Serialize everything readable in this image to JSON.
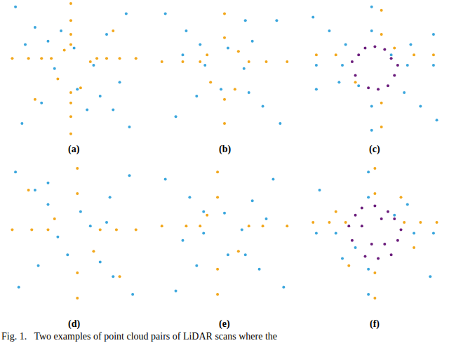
{
  "caption": "Fig. 1.   Two examples of point cloud pairs of LiDAR scans where the",
  "chart_data": [
    {
      "type": "scatter",
      "annotations": [
        "(a)"
      ],
      "xlim": [
        -1,
        1
      ],
      "ylim": [
        -1,
        1
      ],
      "tick_labels": false,
      "grid": false,
      "series": [
        {
          "color": "#f2a71b",
          "x": [
            -0.95,
            -0.7,
            -0.5,
            -0.35,
            0.35,
            0.5,
            0.7,
            0.95,
            -0.05,
            -0.05,
            -0.05,
            -0.05,
            -0.05,
            -0.05,
            -0.05,
            -0.05,
            0.25,
            -0.25,
            0.1,
            -0.15,
            0.6,
            -0.6
          ],
          "y": [
            0.15,
            0.15,
            0.15,
            0.15,
            0.15,
            0.15,
            0.15,
            0.15,
            0.95,
            0.7,
            0.5,
            0.35,
            -0.35,
            -0.5,
            -0.7,
            -0.95,
            0.1,
            -0.15,
            -0.28,
            0.27,
            0.55,
            -0.45
          ]
        },
        {
          "color": "#3aa6dd",
          "x": [
            -0.9,
            -0.6,
            -0.4,
            0.4,
            0.6,
            0.85,
            -0.8,
            -0.5,
            0.5,
            0.8,
            0.3,
            -0.3,
            0.0,
            0.05,
            -0.75,
            0.7,
            -0.2,
            0.2
          ],
          "y": [
            0.9,
            0.6,
            0.4,
            -0.4,
            -0.6,
            -0.85,
            -0.8,
            -0.5,
            0.5,
            0.8,
            0.05,
            0.0,
            0.3,
            -0.3,
            0.35,
            -0.2,
            0.55,
            -0.6
          ]
        }
      ]
    },
    {
      "type": "scatter",
      "annotations": [
        "(b)"
      ],
      "xlim": [
        -1,
        1
      ],
      "ylim": [
        -1,
        1
      ],
      "tick_labels": false,
      "grid": false,
      "series": [
        {
          "color": "#f2a71b",
          "x": [
            -0.9,
            -0.6,
            -0.35,
            0.35,
            0.6,
            0.9,
            0.0,
            0.0,
            0.0,
            0.0,
            0.2,
            -0.2,
            0.15,
            -0.25
          ],
          "y": [
            0.1,
            0.1,
            0.1,
            0.1,
            0.1,
            0.1,
            0.8,
            0.45,
            -0.45,
            -0.8,
            0.25,
            -0.2,
            -0.3,
            0.2
          ]
        },
        {
          "color": "#3aa6dd",
          "x": [
            -0.85,
            -0.55,
            -0.35,
            0.35,
            0.55,
            0.8,
            -0.7,
            -0.4,
            0.4,
            0.75,
            0.28,
            -0.28,
            0.05,
            -0.05,
            0.3,
            -0.6
          ],
          "y": [
            0.8,
            0.55,
            0.35,
            -0.35,
            -0.55,
            -0.8,
            -0.7,
            -0.4,
            0.4,
            0.7,
            0.0,
            0.05,
            0.3,
            -0.3,
            0.7,
            0.2
          ]
        }
      ]
    },
    {
      "type": "scatter",
      "annotations": [
        "(c)"
      ],
      "xlim": [
        -1,
        1
      ],
      "ylim": [
        -1,
        1
      ],
      "tick_labels": false,
      "grid": false,
      "series": [
        {
          "color": "#f2a71b",
          "x": [
            -0.9,
            -0.6,
            0.6,
            0.9,
            0.1,
            0.1,
            0.1,
            0.1,
            -0.3,
            0.3
          ],
          "y": [
            0.2,
            0.2,
            0.2,
            0.2,
            0.85,
            0.5,
            -0.5,
            -0.85,
            -0.2,
            0.3
          ]
        },
        {
          "color": "#3aa6dd",
          "x": [
            -0.95,
            -0.7,
            -0.45,
            0.45,
            0.7,
            0.95,
            -0.9,
            -0.55,
            0.55,
            0.9,
            -0.05,
            -0.05,
            -0.05,
            -0.05,
            -0.9,
            -0.5,
            0.5,
            0.9,
            0.25,
            -0.25
          ],
          "y": [
            0.75,
            0.55,
            0.35,
            -0.35,
            -0.55,
            -0.75,
            -0.3,
            -0.2,
            0.35,
            0.5,
            0.9,
            0.55,
            -0.55,
            -0.9,
            0.05,
            0.05,
            0.05,
            0.05,
            0.2,
            -0.25
          ]
        },
        {
          "color": "#6b1d7c",
          "x": [
            -0.25,
            -0.15,
            0.0,
            0.15,
            0.25,
            0.3,
            0.2,
            -0.3,
            0.05,
            -0.1,
            0.35,
            -0.35
          ],
          "y": [
            0.2,
            0.3,
            0.32,
            0.28,
            0.15,
            -0.1,
            -0.25,
            -0.1,
            -0.3,
            -0.28,
            0.05,
            0.1
          ]
        }
      ]
    },
    {
      "type": "scatter",
      "annotations": [
        "(d)"
      ],
      "xlim": [
        -1,
        1
      ],
      "ylim": [
        -1,
        1
      ],
      "tick_labels": false,
      "grid": false,
      "series": [
        {
          "color": "#f2a71b",
          "x": [
            -0.95,
            -0.65,
            -0.4,
            0.4,
            0.65,
            0.95,
            0.05,
            0.05,
            0.05,
            0.05,
            0.3,
            -0.3,
            0.7,
            -0.7
          ],
          "y": [
            0.05,
            0.05,
            0.05,
            0.05,
            0.05,
            0.05,
            0.9,
            0.55,
            -0.55,
            -0.9,
            -0.25,
            0.2,
            -0.6,
            0.6
          ]
        },
        {
          "color": "#3aa6dd",
          "x": [
            -0.9,
            -0.6,
            -0.4,
            0.4,
            0.6,
            0.9,
            -0.85,
            -0.55,
            0.55,
            0.85,
            0.25,
            -0.25,
            0.1,
            -0.1,
            0.5,
            -0.4
          ],
          "y": [
            0.85,
            0.6,
            0.4,
            -0.4,
            -0.6,
            -0.85,
            -0.75,
            -0.45,
            0.5,
            0.8,
            0.1,
            -0.05,
            0.3,
            -0.3,
            0.15,
            0.7
          ]
        }
      ]
    },
    {
      "type": "scatter",
      "annotations": [
        "(e)"
      ],
      "xlim": [
        -1,
        1
      ],
      "ylim": [
        -1,
        1
      ],
      "tick_labels": false,
      "grid": false,
      "series": [
        {
          "color": "#f2a71b",
          "x": [
            -0.9,
            -0.55,
            -0.35,
            0.35,
            0.55,
            0.9,
            -0.1,
            -0.1,
            -0.1,
            -0.1,
            0.2,
            -0.25
          ],
          "y": [
            0.1,
            0.1,
            0.1,
            0.1,
            0.1,
            0.1,
            0.85,
            0.5,
            -0.5,
            -0.85,
            -0.25,
            0.25
          ]
        },
        {
          "color": "#3aa6dd",
          "x": [
            -0.85,
            -0.5,
            -0.3,
            0.3,
            0.5,
            0.85,
            -0.7,
            -0.4,
            0.4,
            0.7,
            0.25,
            -0.3,
            0.0,
            0.05,
            0.6,
            -0.6
          ],
          "y": [
            0.75,
            0.5,
            0.3,
            -0.3,
            -0.5,
            -0.75,
            -0.8,
            -0.45,
            0.45,
            0.75,
            0.05,
            0.0,
            0.28,
            -0.3,
            0.2,
            -0.1
          ]
        }
      ]
    },
    {
      "type": "scatter",
      "annotations": [
        "(f)"
      ],
      "xlim": [
        -1,
        1
      ],
      "ylim": [
        -1,
        1
      ],
      "tick_labels": false,
      "grid": false,
      "series": [
        {
          "color": "#f2a71b",
          "x": [
            -0.95,
            -0.7,
            -0.45,
            0.45,
            0.7,
            0.95,
            0.0,
            0.0,
            0.0,
            0.0,
            0.4,
            -0.4,
            0.6,
            -0.6
          ],
          "y": [
            0.15,
            0.15,
            0.15,
            0.15,
            0.15,
            0.15,
            0.9,
            0.55,
            -0.55,
            -0.9,
            0.5,
            -0.45,
            -0.2,
            0.3
          ]
        },
        {
          "color": "#3aa6dd",
          "x": [
            -0.9,
            -0.6,
            0.6,
            0.9,
            -0.85,
            0.85,
            -0.1,
            -0.1,
            -0.1,
            -0.1,
            -0.5,
            0.5,
            0.3,
            -0.3
          ],
          "y": [
            0.0,
            0.0,
            0.0,
            0.0,
            0.6,
            -0.6,
            0.85,
            0.5,
            -0.5,
            -0.85,
            -0.35,
            0.4,
            0.25,
            -0.2
          ]
        },
        {
          "color": "#6b1d7c",
          "x": [
            -0.3,
            -0.2,
            0.0,
            0.2,
            0.3,
            0.35,
            0.25,
            -0.35,
            0.05,
            -0.15,
            0.4,
            -0.4,
            0.1,
            -0.05,
            0.15,
            -0.2
          ],
          "y": [
            0.25,
            0.35,
            0.38,
            0.3,
            0.2,
            -0.1,
            -0.3,
            -0.1,
            -0.35,
            -0.32,
            0.05,
            0.1,
            0.2,
            -0.15,
            -0.15,
            0.1
          ]
        }
      ]
    }
  ]
}
